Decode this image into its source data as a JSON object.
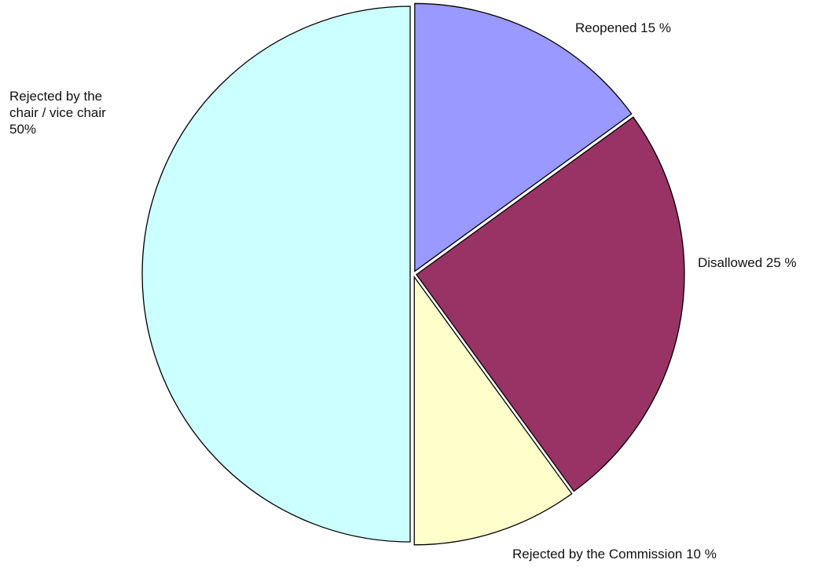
{
  "chart_data": {
    "type": "pie",
    "title": "",
    "start_angle_deg": 0,
    "direction": "clockwise",
    "legend": "none",
    "slices": [
      {
        "key": "reopened",
        "label_lines": [
          "Reopened 15 %"
        ],
        "value": 15,
        "color": "#9999ff"
      },
      {
        "key": "disallowed",
        "label_lines": [
          "Disallowed 25 %"
        ],
        "value": 25,
        "color": "#993366"
      },
      {
        "key": "rejected-commission",
        "label_lines": [
          "Rejected by the Commission 10 %"
        ],
        "value": 10,
        "color": "#ffffcc"
      },
      {
        "key": "rejected-chair",
        "label_lines": [
          "Rejected by the",
          "chair / vice chair",
          "50%"
        ],
        "value": 50,
        "color": "#ccffff"
      }
    ]
  }
}
